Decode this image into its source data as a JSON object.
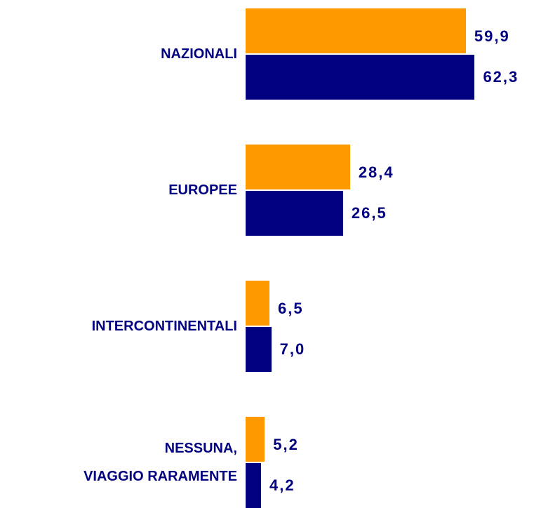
{
  "chart_data": {
    "type": "bar",
    "orientation": "horizontal",
    "categories": [
      "NAZIONALI",
      "EUROPEE",
      "INTERCONTINENTALI",
      "NESSUNA,\nVIAGGIO RARAMENTE"
    ],
    "xlim": [
      0,
      75
    ],
    "series": [
      {
        "color": "#ff9900",
        "values": [
          59.9,
          28.4,
          6.5,
          5.2
        ],
        "value_labels": [
          "59,9",
          "28,4",
          "6,5",
          "5,2"
        ]
      },
      {
        "color": "#000080",
        "values": [
          62.3,
          26.5,
          7.0,
          4.2
        ],
        "value_labels": [
          "62,3",
          "26,5",
          "7,0",
          "4,2"
        ]
      }
    ]
  }
}
